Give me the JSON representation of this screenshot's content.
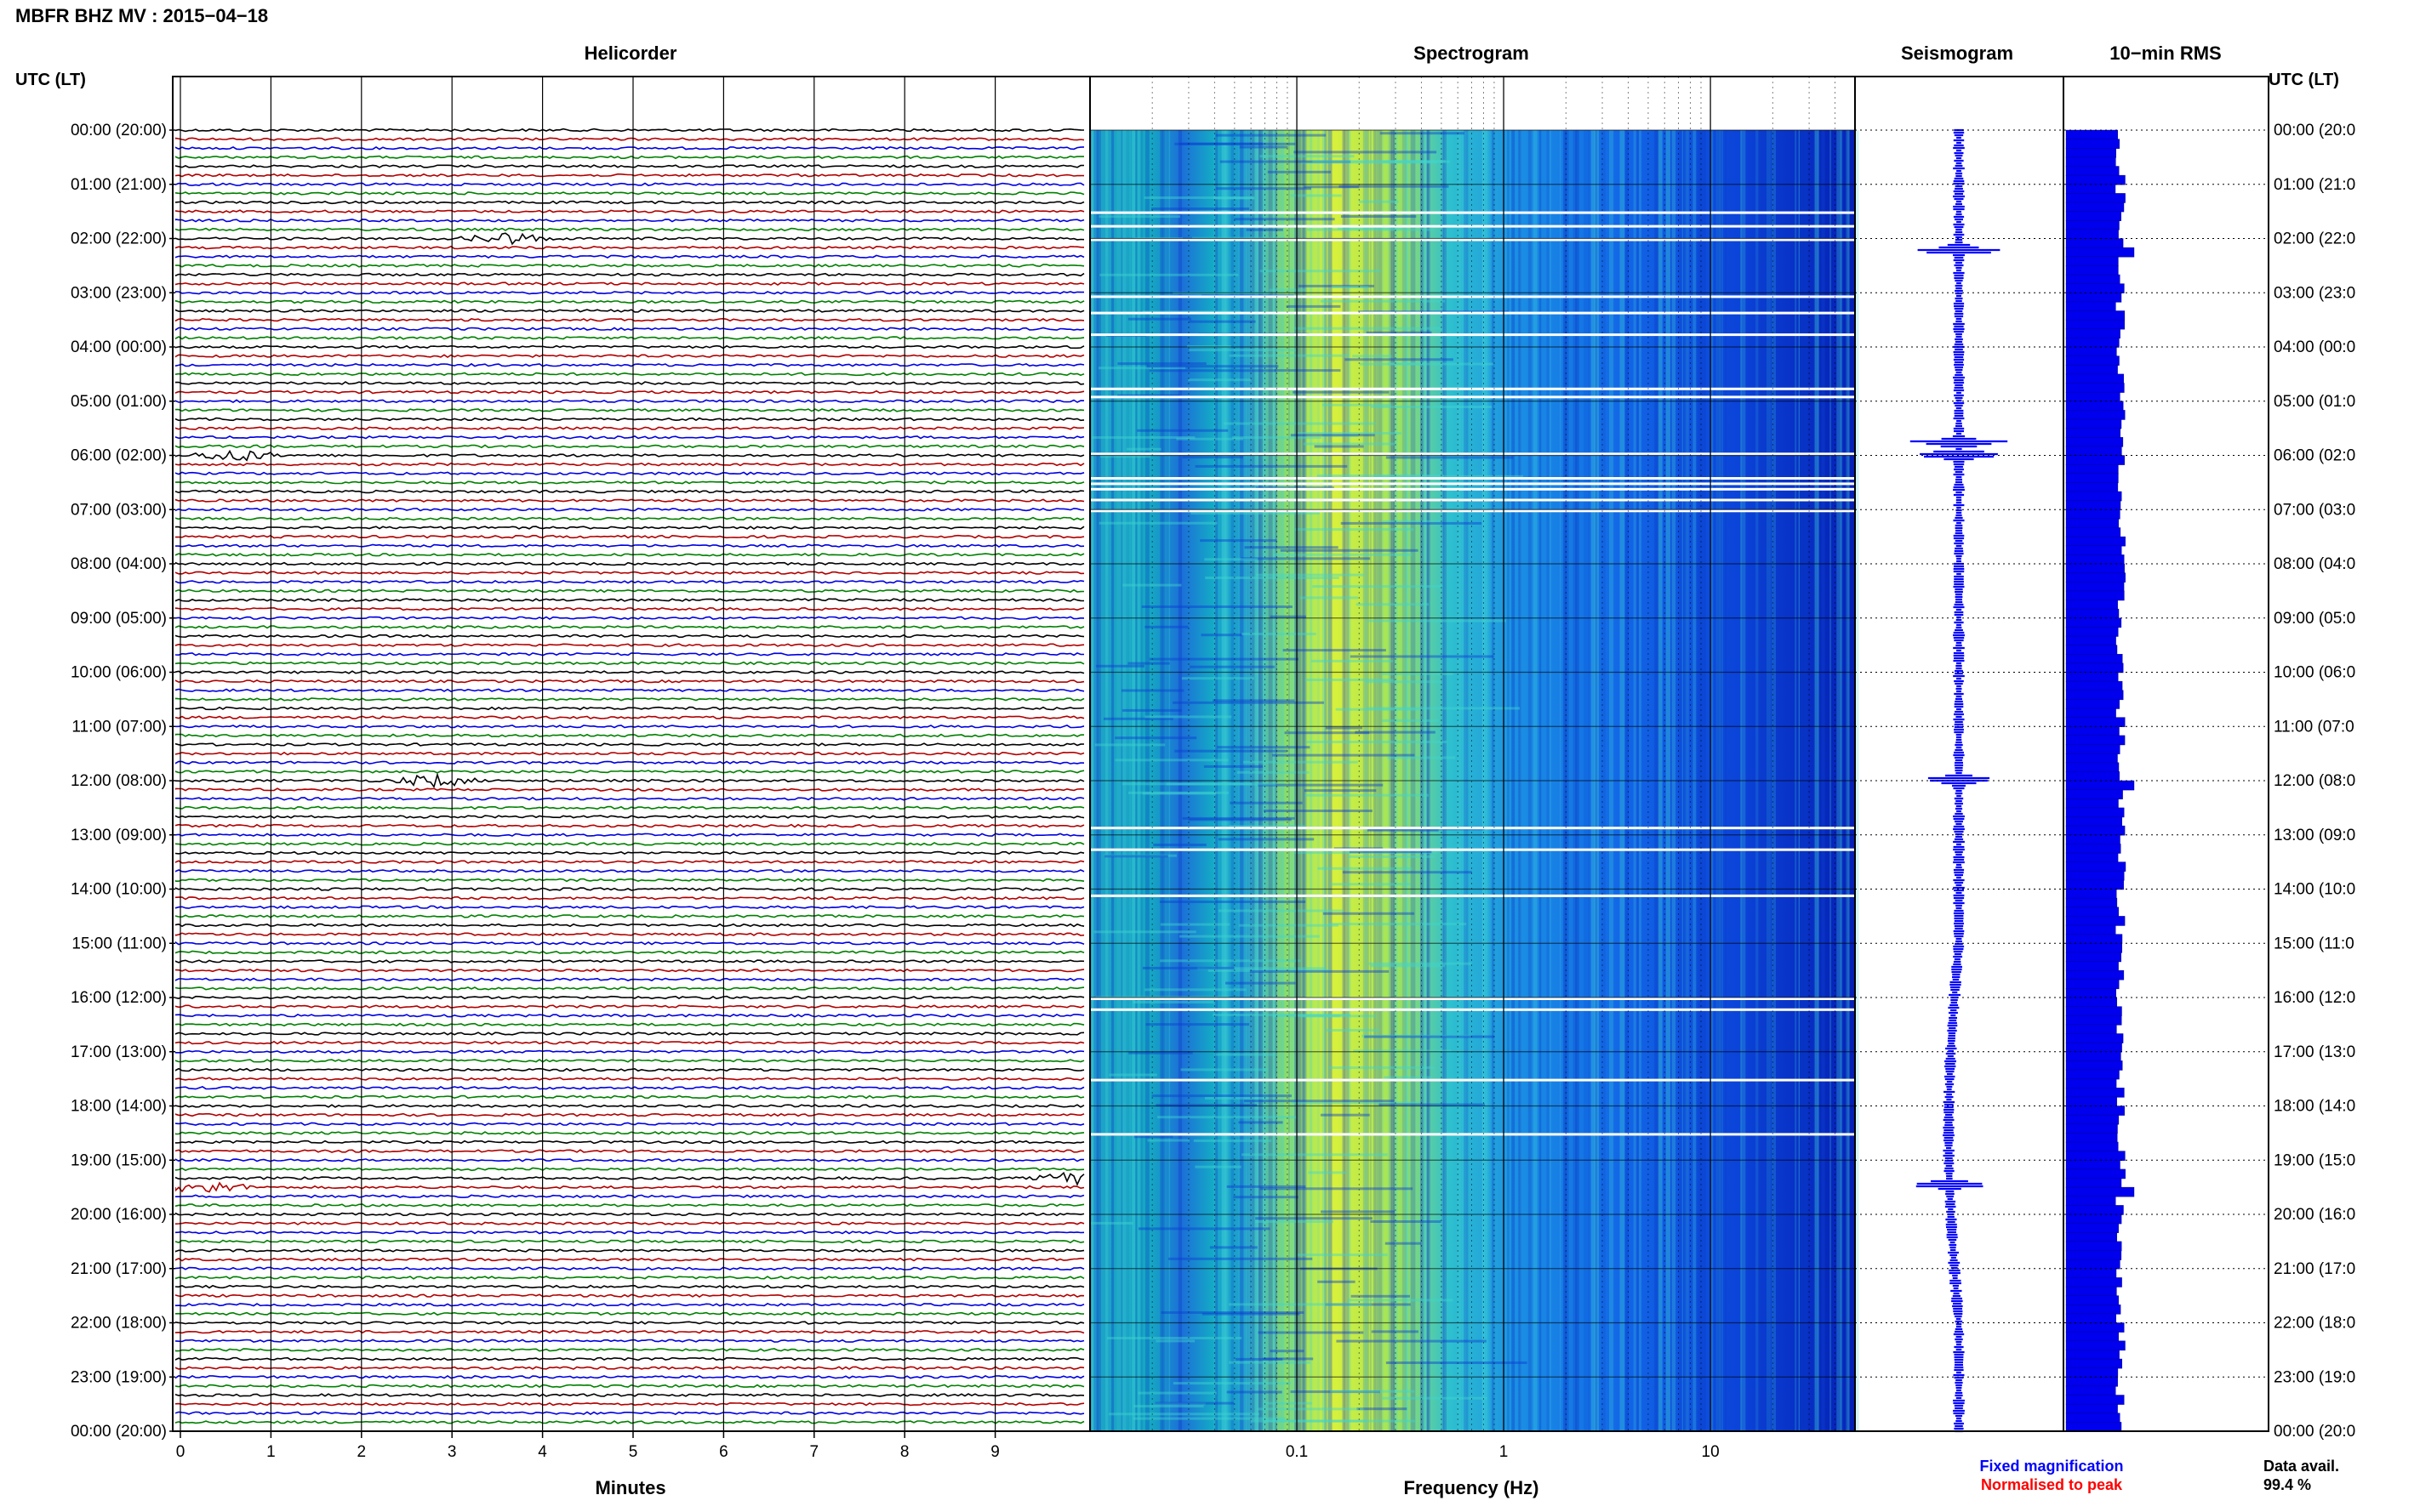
{
  "page": {
    "title": "MBFR BHZ MV : 2015−04−18",
    "utc_label": "UTC (LT)",
    "data_avail_label": "Data avail.",
    "data_avail_value": "99.4 %",
    "legend_fixed": "Fixed magnification",
    "legend_normalised": "Normalised to peak"
  },
  "colors": {
    "trace_cycle": [
      "#000000",
      "#b00000",
      "#0000e0",
      "#008000"
    ],
    "seismo_blue": "#0000ff",
    "rms_blue": "#0000ee",
    "legend_fixed_color": "#0000ff",
    "legend_normalised_color": "#ff0000"
  },
  "chart_data": [
    {
      "panel": "Helicorder",
      "type": "line",
      "title": "Helicorder",
      "xlabel": "Minutes",
      "x_ticks": [
        "0",
        "1",
        "2",
        "3",
        "4",
        "5",
        "6",
        "7",
        "8",
        "9"
      ],
      "xlim": [
        0,
        10
      ],
      "lines_per_hour": 6,
      "y_tick_labels": [
        "00:00 (20:00)",
        "01:00 (21:00)",
        "02:00 (22:00)",
        "03:00 (23:00)",
        "04:00 (00:00)",
        "05:00 (01:00)",
        "06:00 (02:00)",
        "07:00 (03:00)",
        "08:00 (04:00)",
        "09:00 (05:00)",
        "10:00 (06:00)",
        "11:00 (07:00)",
        "12:00 (08:00)",
        "13:00 (09:00)",
        "14:00 (10:00)",
        "15:00 (11:00)",
        "16:00 (12:00)",
        "17:00 (13:00)",
        "18:00 (14:00)",
        "19:00 (15:00)",
        "20:00 (16:00)",
        "21:00 (17:00)",
        "22:00 (18:00)",
        "23:00 (19:00)",
        "00:00 (20:00)"
      ],
      "notable_events": [
        {
          "time": "02:00",
          "minute": 3.6
        },
        {
          "time": "06:00",
          "minute": 0.6
        },
        {
          "time": "12:00",
          "minute": 2.8
        },
        {
          "time": "19:30",
          "minute": 0.3
        },
        {
          "time": "19:20",
          "minute": 9.9
        }
      ]
    },
    {
      "panel": "Spectrogram",
      "type": "heatmap",
      "title": "Spectrogram",
      "xlabel": "Frequency (Hz)",
      "x_scale": "log",
      "xlim": [
        0.01,
        50
      ],
      "x_tick_labels": [
        "0.1",
        "1",
        "10"
      ],
      "gap_hours": [
        1.5,
        1.75,
        2.0,
        3.05,
        3.35,
        3.75,
        4.75,
        4.9,
        5.95,
        6.4,
        6.5,
        6.6,
        6.8,
        7.0,
        12.85,
        13.25,
        14.1,
        16.0,
        16.2,
        17.5,
        18.5
      ]
    },
    {
      "panel": "Seismogram",
      "type": "line",
      "title": "Seismogram",
      "spikes_hours": [
        2.2,
        5.75,
        6.0,
        12.0,
        19.45
      ]
    },
    {
      "panel": "10-min RMS",
      "type": "bar",
      "title": "10−min RMS",
      "orientation": "horizontal",
      "relative_peaks_hours": [
        2.2,
        12.0,
        19.45
      ]
    }
  ]
}
